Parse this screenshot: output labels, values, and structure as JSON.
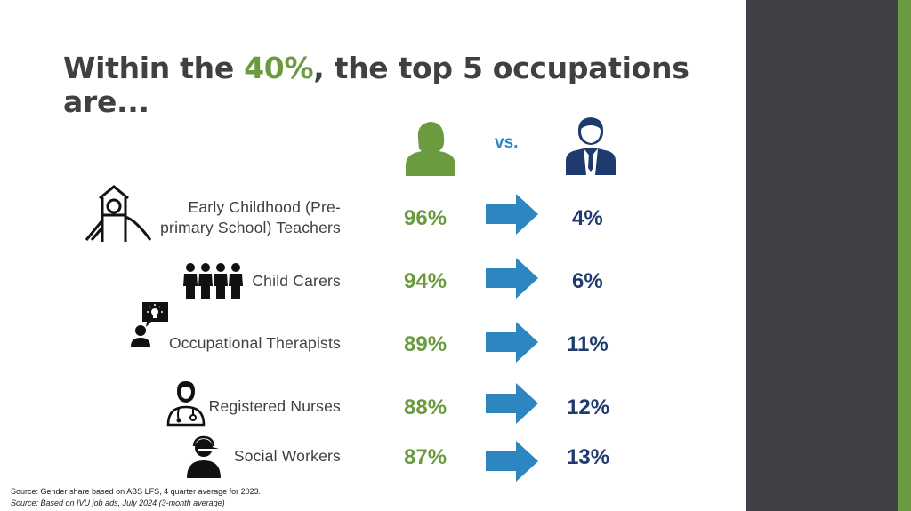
{
  "title": {
    "before": "Within the ",
    "highlight": "40%",
    "after": ", the top 5 occupations are..."
  },
  "comparison": {
    "vs_label": "vs."
  },
  "occupations": [
    {
      "label_line1": "Early Childhood (Pre-",
      "label_line2": "primary School) Teachers",
      "female": "96%",
      "male": "4%",
      "icon": "playground-slide-icon"
    },
    {
      "label": "Child Carers",
      "female": "94%",
      "male": "6%",
      "icon": "group-of-people-icon"
    },
    {
      "label": "Occupational Therapists",
      "female": "89%",
      "male": "11%",
      "icon": "person-with-idea-icon"
    },
    {
      "label": "Registered Nurses",
      "female": "88%",
      "male": "12%",
      "icon": "nurse-icon"
    },
    {
      "label": "Social Workers",
      "female": "87%",
      "male": "13%",
      "icon": "person-with-headset-icon"
    }
  ],
  "sources": {
    "line1": "Source: Gender share based on ABS LFS, 4 quarter average for 2023.",
    "line2": "Source: Based on IVU job ads, July 2024 (3-month average)"
  },
  "colors": {
    "female": "#6b9a3f",
    "male": "#1f3a6e",
    "arrow": "#2e86c1",
    "sidebar": "#3e4045"
  }
}
